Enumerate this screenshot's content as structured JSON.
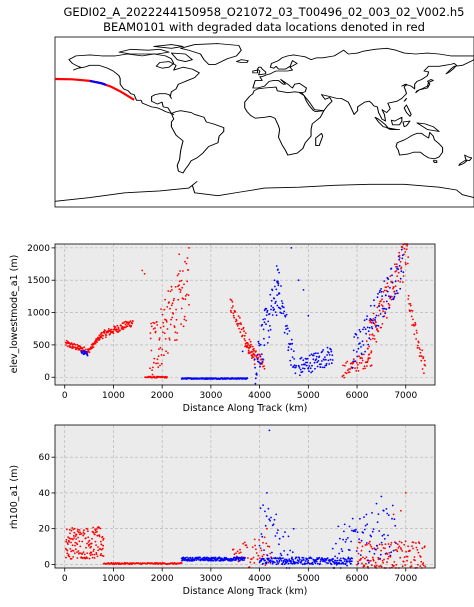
{
  "figure": {
    "title_line1": "GEDI02_A_2022244150958_O21072_03_T00496_02_003_02_V002.h5",
    "title_line2": "BEAM0101 with degraded data locations denoted in red"
  },
  "colors": {
    "degraded": "#ff0000",
    "good": "#0000ff",
    "plot_background": "#ebebeb",
    "grid": "#b0b0b0"
  },
  "chart_data": [
    {
      "type": "map",
      "projection": "plate-carree",
      "track": {
        "lon": [
          -180,
          -165,
          -150,
          -140,
          -132,
          -124,
          -118,
          -112
        ],
        "lat": [
          45.5,
          45.2,
          43.5,
          41.0,
          37.5,
          32.5,
          28.0,
          23.5
        ],
        "blue_segment_lon": [
          -150,
          -136
        ]
      }
    },
    {
      "type": "scatter",
      "xlabel": "Distance Along Track (km)",
      "ylabel": "elev_lowestmode_a1 (m)",
      "xlim": [
        -200,
        7600
      ],
      "ylim": [
        -120,
        2060
      ],
      "xticks": [
        0,
        1000,
        2000,
        3000,
        4000,
        5000,
        6000,
        7000
      ],
      "yticks": [
        0,
        500,
        1000,
        1500,
        2000
      ],
      "series": [
        {
          "color": "red",
          "segments": [
            {
              "x0": 20,
              "x1": 480,
              "y_start": 520,
              "y_end": 400,
              "n": 70,
              "jitter": 50
            },
            {
              "x0": 480,
              "x1": 750,
              "y_start": 400,
              "y_end": 650,
              "n": 40,
              "jitter": 40
            },
            {
              "x0": 750,
              "x1": 1400,
              "y_start": 650,
              "y_end": 850,
              "n": 90,
              "jitter": 60
            },
            {
              "x0": 1650,
              "x1": 2100,
              "y_start": 0,
              "y_end": 0,
              "n": 40,
              "jitter": 10
            },
            {
              "x0": 1750,
              "x1": 2550,
              "y_start": 350,
              "y_end": 1400,
              "n": 110,
              "jitter": 500
            },
            {
              "x0": 3400,
              "x1": 3900,
              "y_start": 1150,
              "y_end": 300,
              "n": 60,
              "jitter": 120
            },
            {
              "x0": 3700,
              "x1": 4100,
              "y_start": 500,
              "y_end": 200,
              "n": 40,
              "jitter": 80
            },
            {
              "x0": 5700,
              "x1": 6300,
              "y_start": 100,
              "y_end": 300,
              "n": 50,
              "jitter": 120
            },
            {
              "x0": 6200,
              "x1": 7050,
              "y_start": 500,
              "y_end": 1950,
              "n": 110,
              "jitter": 300
            },
            {
              "x0": 7050,
              "x1": 7400,
              "y_start": 1150,
              "y_end": 100,
              "n": 40,
              "jitter": 150
            }
          ],
          "points": [
            [
              2060,
              1200
            ],
            [
              2200,
              1350
            ],
            [
              2350,
              1900
            ],
            [
              2550,
              2000
            ],
            [
              1640,
              1600
            ],
            [
              1590,
              1650
            ]
          ]
        },
        {
          "color": "blue",
          "segments": [
            {
              "x0": 340,
              "x1": 470,
              "y_start": 390,
              "y_end": 360,
              "n": 20,
              "jitter": 30
            },
            {
              "x0": 2400,
              "x1": 3750,
              "y_start": -20,
              "y_end": -20,
              "n": 200,
              "jitter": 8
            },
            {
              "x0": 3900,
              "x1": 4400,
              "y_start": 200,
              "y_end": 1400,
              "n": 70,
              "jitter": 350
            },
            {
              "x0": 4350,
              "x1": 4750,
              "y_start": 1500,
              "y_end": 50,
              "n": 50,
              "jitter": 250
            },
            {
              "x0": 4800,
              "x1": 5500,
              "y_start": 150,
              "y_end": 350,
              "n": 80,
              "jitter": 150
            },
            {
              "x0": 5900,
              "x1": 6950,
              "y_start": 300,
              "y_end": 1750,
              "n": 100,
              "jitter": 300
            }
          ],
          "points": [
            [
              4650,
              2000
            ],
            [
              4800,
              1500
            ],
            [
              4900,
              1350
            ],
            [
              5000,
              950
            ],
            [
              4300,
              1050
            ],
            [
              4100,
              850
            ],
            [
              3650,
              400
            ]
          ]
        }
      ]
    },
    {
      "type": "scatter",
      "xlabel": "Distance Along Track (km)",
      "ylabel": "rh100_a1 (m)",
      "xlim": [
        -200,
        7600
      ],
      "ylim": [
        -2,
        78
      ],
      "xticks": [
        0,
        1000,
        2000,
        3000,
        4000,
        5000,
        6000,
        7000
      ],
      "yticks": [
        0,
        20,
        40,
        60
      ],
      "series": [
        {
          "color": "red",
          "segments": [
            {
              "x0": 20,
              "x1": 800,
              "y_start": 12,
              "y_end": 12,
              "n": 160,
              "jitter": 9
            },
            {
              "x0": 800,
              "x1": 2400,
              "y_start": 0.5,
              "y_end": 0.5,
              "n": 120,
              "jitter": 0.4
            },
            {
              "x0": 3450,
              "x1": 4250,
              "y_start": 5,
              "y_end": 8,
              "n": 50,
              "jitter": 8
            },
            {
              "x0": 6000,
              "x1": 7400,
              "y_start": 5,
              "y_end": 5,
              "n": 140,
              "jitter": 8
            }
          ],
          "points": [
            [
              7000,
              40
            ],
            [
              6900,
              30
            ],
            [
              6750,
              28
            ],
            [
              4150,
              20
            ],
            [
              3900,
              14
            ]
          ]
        },
        {
          "color": "blue",
          "segments": [
            {
              "x0": 2400,
              "x1": 3700,
              "y_start": 3,
              "y_end": 3,
              "n": 180,
              "jitter": 1
            },
            {
              "x0": 4000,
              "x1": 5900,
              "y_start": 2,
              "y_end": 2,
              "n": 220,
              "jitter": 2
            },
            {
              "x0": 4000,
              "x1": 4700,
              "y_start": 22,
              "y_end": 6,
              "n": 40,
              "jitter": 14
            },
            {
              "x0": 5500,
              "x1": 6800,
              "y_start": 8,
              "y_end": 20,
              "n": 80,
              "jitter": 14
            }
          ],
          "points": [
            [
              4200,
              75
            ],
            [
              4150,
              40
            ],
            [
              6500,
              38
            ],
            [
              6400,
              34
            ],
            [
              6550,
              30
            ],
            [
              5850,
              8
            ],
            [
              6200,
              12
            ]
          ]
        }
      ]
    }
  ]
}
